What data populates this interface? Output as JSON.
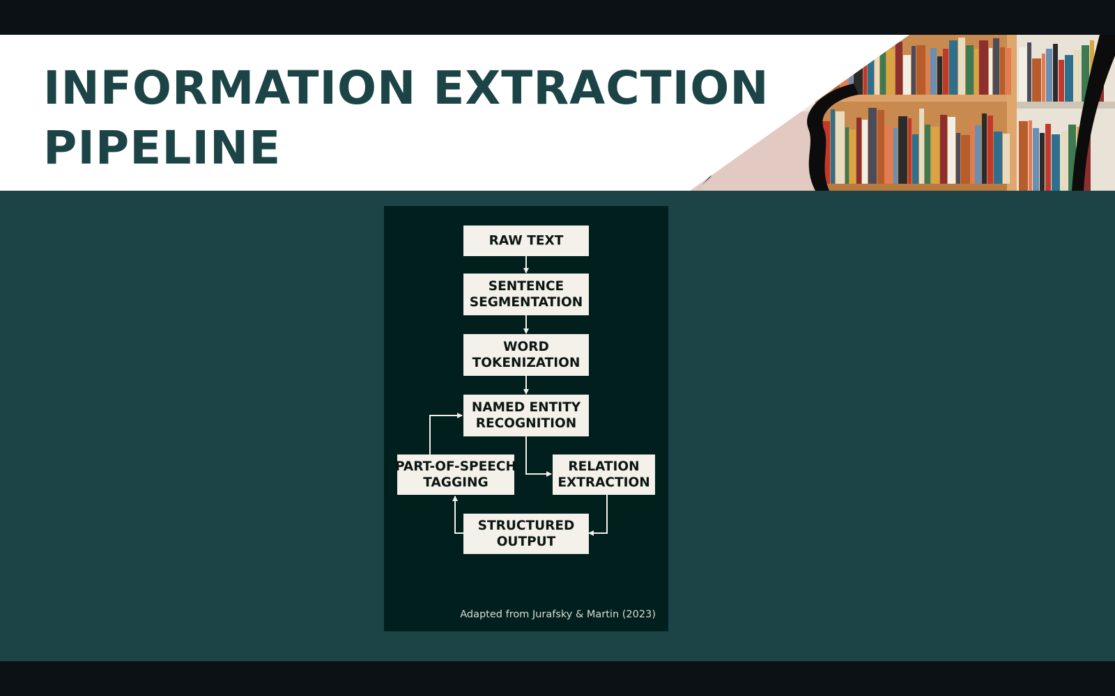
{
  "slide": {
    "title_lines": [
      "INFORMATION EXTRACTION",
      "PIPELINE"
    ],
    "colors": {
      "teal": "#1c4446",
      "card": "#011f1d",
      "box": "#f4f1ea",
      "letterbox": "#0c1116"
    },
    "decor_image": "bookshelf-photo"
  },
  "diagram": {
    "nodes": [
      {
        "id": "raw_text",
        "lines": [
          "RAW TEXT"
        ]
      },
      {
        "id": "sentence_segmentation",
        "lines": [
          "SENTENCE",
          "SEGMENTATION"
        ]
      },
      {
        "id": "word_tokenization",
        "lines": [
          "WORD",
          "TOKENIZATION"
        ]
      },
      {
        "id": "named_entity_recognition",
        "lines": [
          "NAMED ENTITY",
          "RECOGNITION"
        ]
      },
      {
        "id": "part_of_speech_tagging",
        "lines": [
          "PART-OF-SPEECH",
          "TAGGING"
        ]
      },
      {
        "id": "relation_extraction",
        "lines": [
          "RELATION",
          "EXTRACTION"
        ]
      },
      {
        "id": "structured_output",
        "lines": [
          "STRUCTURED",
          "OUTPUT"
        ]
      }
    ],
    "edges": [
      {
        "from": "raw_text",
        "to": "sentence_segmentation"
      },
      {
        "from": "sentence_segmentation",
        "to": "word_tokenization"
      },
      {
        "from": "word_tokenization",
        "to": "named_entity_recognition"
      },
      {
        "from": "named_entity_recognition",
        "to": "relation_extraction"
      },
      {
        "from": "relation_extraction",
        "to": "structured_output"
      },
      {
        "from": "structured_output",
        "to": "part_of_speech_tagging"
      },
      {
        "from": "part_of_speech_tagging",
        "to": "named_entity_recognition"
      }
    ],
    "caption": "Adapted from Jurafsky & Martin (2023)"
  }
}
